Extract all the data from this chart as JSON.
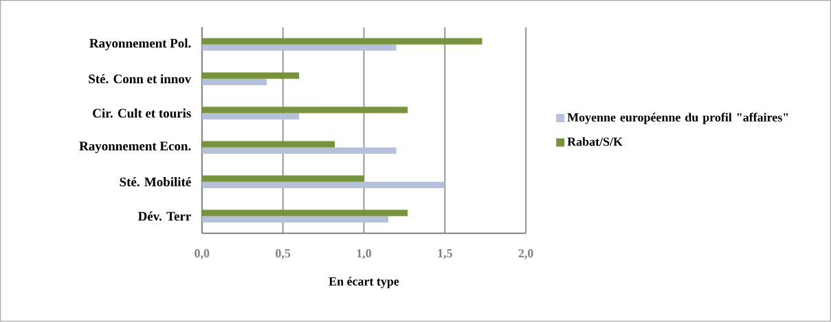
{
  "chart_data": {
    "type": "bar",
    "orientation": "horizontal",
    "xlabel": "En écart type",
    "categories": [
      "Rayonnement Pol.",
      "Sté. Conn et innov",
      "Cir. Cult et touris",
      "Rayonnement Econ.",
      "Sté. Mobilité",
      "Dév. Terr"
    ],
    "series": [
      {
        "name": "Moyenne européenne du profil \"affaires\"",
        "color": "#b4c0dc",
        "values": [
          1.2,
          0.4,
          0.6,
          1.2,
          1.5,
          1.15
        ]
      },
      {
        "name": "Rabat/S/K",
        "color": "#77933c",
        "values": [
          1.73,
          0.6,
          1.27,
          0.82,
          1.0,
          1.27
        ]
      }
    ],
    "xlim": [
      0,
      2
    ],
    "xticks": [
      {
        "value": 0,
        "label": "0,0"
      },
      {
        "value": 0.5,
        "label": "0,5"
      },
      {
        "value": 1,
        "label": "1,0"
      },
      {
        "value": 1.5,
        "label": "1,5"
      },
      {
        "value": 2,
        "label": "2,0"
      }
    ],
    "grid": "x",
    "legend": "right"
  }
}
